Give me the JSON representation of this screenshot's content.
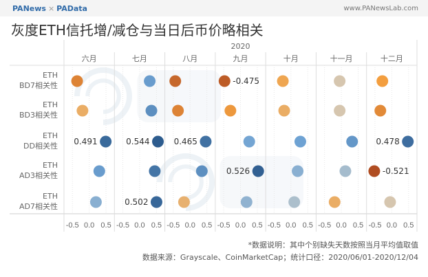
{
  "header": {
    "brand_left": "PANews",
    "brand_sep": "×",
    "brand_right": "PAData",
    "site": "www.PANewsLab.com",
    "title": "灰度ETH信托增/减仓与当日后币价略相关"
  },
  "footer": {
    "note": "*数据说明：其中个别缺失天数按照当月平均值取值",
    "source": "数据来源：Grayscale、CoinMarketCap；统计口径：2020/06/01-2020/12/04"
  },
  "chart_data": {
    "type": "scatter",
    "year_label": "2020",
    "columns": [
      "六月",
      "七月",
      "八月",
      "九月",
      "十月",
      "十一月",
      "十二月"
    ],
    "rows": [
      [
        "ETH",
        "BD7相关性"
      ],
      [
        "ETH",
        "BD3相关性"
      ],
      [
        "ETH",
        "DD相关性"
      ],
      [
        "ETH",
        "AD3相关性"
      ],
      [
        "ETH",
        "AD7相关性"
      ]
    ],
    "xticks": [
      "-0.5",
      "0.0",
      "0.5"
    ],
    "xlim": [
      -0.75,
      0.75
    ],
    "values": [
      [
        -0.36,
        0.3,
        -0.44,
        -0.475,
        -0.24,
        -0.05,
        -0.28
      ],
      [
        -0.2,
        0.35,
        -0.36,
        -0.3,
        -0.2,
        -0.05,
        -0.34
      ],
      [
        0.491,
        0.544,
        0.465,
        0.26,
        0.28,
        0.32,
        0.478
      ],
      [
        0.3,
        0.45,
        0.35,
        0.526,
        0.2,
        0.12,
        -0.521
      ],
      [
        0.2,
        0.502,
        -0.18,
        0.18,
        0.1,
        -0.2,
        -0.05
      ]
    ],
    "labels": [
      [
        null,
        null,
        null,
        "-0.475",
        null,
        null,
        null
      ],
      [
        null,
        null,
        null,
        null,
        null,
        null,
        null
      ],
      [
        "0.491",
        "0.544",
        "0.465",
        null,
        null,
        null,
        "0.478"
      ],
      [
        null,
        null,
        null,
        "0.526",
        null,
        null,
        "-0.521"
      ],
      [
        null,
        "0.502",
        null,
        null,
        null,
        null,
        null
      ]
    ],
    "color_scale": {
      "negative": "#a8431e",
      "mid_negative": "#f4a040",
      "zero": "#cfcfc8",
      "mid_positive": "#6fa3d4",
      "positive": "#2c5a8c"
    },
    "watermarks": [
      "PANews",
      "PAData"
    ]
  }
}
